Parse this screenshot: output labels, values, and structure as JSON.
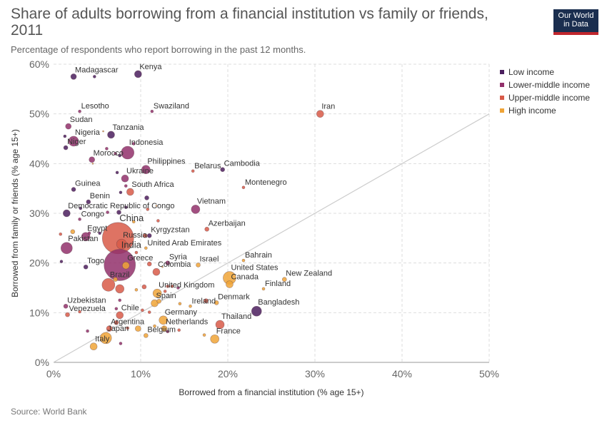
{
  "title": "Share of adults borrowing from a financial institution vs family or friends, 2011",
  "subtitle": "Percentage of respondents who report borrowing in the past 12 months.",
  "logo": {
    "line1": "Our World",
    "line2": "in Data"
  },
  "source": "Source: World Bank",
  "colors": {
    "Low income": "#4b1f5e",
    "Lower-middle income": "#92306b",
    "Upper-middle income": "#d85a48",
    "High income": "#f0a437"
  },
  "chart_data": {
    "type": "scatter",
    "xlabel": "Borrowed from a financial institution (% age 15+)",
    "ylabel": "Borrowed from family or friends (% age 15+)",
    "xlim": [
      0,
      50
    ],
    "ylim": [
      0,
      60
    ],
    "xticks": [
      "0%",
      "10%",
      "20%",
      "30%",
      "40%",
      "50%"
    ],
    "yticks": [
      "0%",
      "10%",
      "20%",
      "30%",
      "40%",
      "50%",
      "60%"
    ],
    "grid": true,
    "legend": [
      {
        "name": "Low income"
      },
      {
        "name": "Lower-middle income"
      },
      {
        "name": "Upper-middle income"
      },
      {
        "name": "High income"
      }
    ],
    "points": [
      {
        "label": "Madagascar",
        "x": 2.3,
        "y": 57.5,
        "group": "Low income",
        "size": 4
      },
      {
        "label": "Kenya",
        "x": 9.7,
        "y": 58.0,
        "group": "Low income",
        "size": 5
      },
      {
        "label": "Lesotho",
        "x": 3.0,
        "y": 50.5,
        "group": "Lower-middle income",
        "size": 2
      },
      {
        "label": "Swaziland",
        "x": 11.3,
        "y": 50.5,
        "group": "Lower-middle income",
        "size": 2
      },
      {
        "label": "Iran",
        "x": 30.6,
        "y": 50.0,
        "group": "Upper-middle income",
        "size": 5
      },
      {
        "label": "Sudan",
        "x": 1.7,
        "y": 47.5,
        "group": "Lower-middle income",
        "size": 4
      },
      {
        "label": "Tanzania",
        "x": 6.6,
        "y": 45.8,
        "group": "Low income",
        "size": 5
      },
      {
        "label": "Nigeria",
        "x": 2.3,
        "y": 44.5,
        "group": "Lower-middle income",
        "size": 7
      },
      {
        "label": "Niger",
        "x": 1.4,
        "y": 43.2,
        "group": "Low income",
        "size": 3
      },
      {
        "label": "Indonesia",
        "x": 8.5,
        "y": 42.2,
        "group": "Lower-middle income",
        "size": 9
      },
      {
        "label": "Morocco",
        "x": 4.4,
        "y": 40.8,
        "group": "Lower-middle income",
        "size": 4
      },
      {
        "label": "Philippines",
        "x": 10.6,
        "y": 38.8,
        "group": "Lower-middle income",
        "size": 6
      },
      {
        "label": "Belarus",
        "x": 16.0,
        "y": 38.5,
        "group": "Upper-middle income",
        "size": 2
      },
      {
        "label": "Cambodia",
        "x": 19.4,
        "y": 38.8,
        "group": "Low income",
        "size": 3
      },
      {
        "label": "Ukraine",
        "x": 8.2,
        "y": 37.0,
        "group": "Lower-middle income",
        "size": 5
      },
      {
        "label": "Montenegro",
        "x": 21.8,
        "y": 35.2,
        "group": "Upper-middle income",
        "size": 2
      },
      {
        "label": "Guinea",
        "x": 2.3,
        "y": 34.8,
        "group": "Low income",
        "size": 3
      },
      {
        "label": "South Africa",
        "x": 8.8,
        "y": 34.3,
        "group": "Upper-middle income",
        "size": 5
      },
      {
        "label": "Benin",
        "x": 4.0,
        "y": 32.3,
        "group": "Low income",
        "size": 3
      },
      {
        "label": "Vietnam",
        "x": 16.3,
        "y": 30.8,
        "group": "Lower-middle income",
        "size": 6
      },
      {
        "label": "Democratic Republic of Congo",
        "x": 1.5,
        "y": 30.0,
        "group": "Low income",
        "size": 5
      },
      {
        "label": "Congo",
        "x": 3.0,
        "y": 28.8,
        "group": "Lower-middle income",
        "size": 2
      },
      {
        "label": "Azerbaijan",
        "x": 17.6,
        "y": 26.8,
        "group": "Upper-middle income",
        "size": 3
      },
      {
        "label": "Kyrgyzstan",
        "x": 11.0,
        "y": 25.5,
        "group": "Low income",
        "size": 3
      },
      {
        "label": "Egypt",
        "x": 3.7,
        "y": 25.3,
        "group": "Lower-middle income",
        "size": 6
      },
      {
        "label": "China",
        "x": 7.4,
        "y": 25.0,
        "group": "Upper-middle income",
        "size": 22
      },
      {
        "label": "Pakistan",
        "x": 1.5,
        "y": 23.0,
        "group": "Lower-middle income",
        "size": 8
      },
      {
        "label": "Russia",
        "x": 7.8,
        "y": 23.8,
        "group": "Upper-middle income",
        "size": 7
      },
      {
        "label": "United Arab Emirates",
        "x": 10.6,
        "y": 23.0,
        "group": "High income",
        "size": 2
      },
      {
        "label": "India",
        "x": 7.6,
        "y": 19.6,
        "group": "Lower-middle income",
        "size": 22
      },
      {
        "label": "Bahrain",
        "x": 21.8,
        "y": 20.5,
        "group": "High income",
        "size": 2
      },
      {
        "label": "Syria",
        "x": 13.1,
        "y": 20.0,
        "group": "Lower-middle income",
        "size": 3
      },
      {
        "label": "Israel",
        "x": 16.6,
        "y": 19.6,
        "group": "High income",
        "size": 3
      },
      {
        "label": "Greece",
        "x": 8.3,
        "y": 19.5,
        "group": "High income",
        "size": 5
      },
      {
        "label": "Togo",
        "x": 3.7,
        "y": 19.2,
        "group": "Low income",
        "size": 3
      },
      {
        "label": "Colombia",
        "x": 11.8,
        "y": 18.2,
        "group": "Upper-middle income",
        "size": 5
      },
      {
        "label": "United States",
        "x": 20.2,
        "y": 17.0,
        "group": "High income",
        "size": 9
      },
      {
        "label": "New Zealand",
        "x": 26.5,
        "y": 16.7,
        "group": "High income",
        "size": 3
      },
      {
        "label": "Brazil",
        "x": 6.3,
        "y": 15.6,
        "group": "Upper-middle income",
        "size": 9
      },
      {
        "label": "Canada",
        "x": 20.2,
        "y": 15.7,
        "group": "High income",
        "size": 5
      },
      {
        "label": "Finland",
        "x": 24.1,
        "y": 14.8,
        "group": "High income",
        "size": 2
      },
      {
        "label": "United Kingdom",
        "x": 11.9,
        "y": 13.9,
        "group": "High income",
        "size": 6
      },
      {
        "label": "Spain",
        "x": 11.6,
        "y": 11.9,
        "group": "High income",
        "size": 5
      },
      {
        "label": "Ireland",
        "x": 15.7,
        "y": 11.3,
        "group": "High income",
        "size": 2
      },
      {
        "label": "Denmark",
        "x": 18.7,
        "y": 12.0,
        "group": "High income",
        "size": 3
      },
      {
        "label": "Uzbekistan",
        "x": 1.4,
        "y": 11.3,
        "group": "Lower-middle income",
        "size": 3
      },
      {
        "label": "Bangladesh",
        "x": 23.3,
        "y": 10.3,
        "group": "Low income",
        "size": 7
      },
      {
        "label": "Venezuela",
        "x": 1.6,
        "y": 9.6,
        "group": "Upper-middle income",
        "size": 3
      },
      {
        "label": "Chile",
        "x": 7.6,
        "y": 9.5,
        "group": "Upper-middle income",
        "size": 5
      },
      {
        "label": "Germany",
        "x": 12.6,
        "y": 8.5,
        "group": "High income",
        "size": 6
      },
      {
        "label": "Thailand",
        "x": 19.1,
        "y": 7.6,
        "group": "Upper-middle income",
        "size": 6
      },
      {
        "label": "Netherlands",
        "x": 12.7,
        "y": 6.8,
        "group": "High income",
        "size": 4
      },
      {
        "label": "Argentina",
        "x": 6.4,
        "y": 6.8,
        "group": "Upper-middle income",
        "size": 4
      },
      {
        "label": "Belgium",
        "x": 10.6,
        "y": 5.4,
        "group": "High income",
        "size": 3
      },
      {
        "label": "France",
        "x": 18.5,
        "y": 4.7,
        "group": "High income",
        "size": 6
      },
      {
        "label": "Japan",
        "x": 6.0,
        "y": 4.9,
        "group": "High income",
        "size": 8
      },
      {
        "label": "Italy",
        "x": 4.6,
        "y": 3.2,
        "group": "High income",
        "size": 5
      },
      {
        "label": "",
        "x": 4.7,
        "y": 57.5,
        "group": "Low income",
        "size": 2
      },
      {
        "label": "",
        "x": 1.3,
        "y": 45.5,
        "group": "Low income",
        "size": 2
      },
      {
        "label": "",
        "x": 5.7,
        "y": 46.5,
        "group": "High income",
        "size": 1
      },
      {
        "label": "",
        "x": 9.2,
        "y": 44.0,
        "group": "Lower-middle income",
        "size": 2
      },
      {
        "label": "",
        "x": 6.1,
        "y": 43.0,
        "group": "Lower-middle income",
        "size": 2
      },
      {
        "label": "",
        "x": 7.1,
        "y": 42.0,
        "group": "Lower-middle income",
        "size": 2
      },
      {
        "label": "",
        "x": 7.6,
        "y": 41.6,
        "group": "Low income",
        "size": 2
      },
      {
        "label": "",
        "x": 4.5,
        "y": 40.0,
        "group": "High income",
        "size": 1
      },
      {
        "label": "",
        "x": 7.3,
        "y": 38.2,
        "group": "Low income",
        "size": 2
      },
      {
        "label": "",
        "x": 8.3,
        "y": 35.5,
        "group": "Lower-middle income",
        "size": 2
      },
      {
        "label": "",
        "x": 7.7,
        "y": 34.2,
        "group": "Low income",
        "size": 2
      },
      {
        "label": "",
        "x": 10.7,
        "y": 33.1,
        "group": "Low income",
        "size": 3
      },
      {
        "label": "",
        "x": 7.5,
        "y": 30.2,
        "group": "Low income",
        "size": 3
      },
      {
        "label": "",
        "x": 10.8,
        "y": 30.8,
        "group": "Upper-middle income",
        "size": 2
      },
      {
        "label": "",
        "x": 11.8,
        "y": 31.5,
        "group": "High income",
        "size": 1
      },
      {
        "label": "",
        "x": 6.2,
        "y": 30.2,
        "group": "Lower-middle income",
        "size": 2
      },
      {
        "label": "",
        "x": 8.3,
        "y": 31.2,
        "group": "Low income",
        "size": 2
      },
      {
        "label": "",
        "x": 3.1,
        "y": 31.0,
        "group": "Low income",
        "size": 2
      },
      {
        "label": "",
        "x": 12.0,
        "y": 28.5,
        "group": "Upper-middle income",
        "size": 2
      },
      {
        "label": "",
        "x": 0.8,
        "y": 25.8,
        "group": "Upper-middle income",
        "size": 2
      },
      {
        "label": "",
        "x": 2.2,
        "y": 26.3,
        "group": "High income",
        "size": 3
      },
      {
        "label": "",
        "x": 4.1,
        "y": 26.0,
        "group": "Lower-middle income",
        "size": 2
      },
      {
        "label": "",
        "x": 9.2,
        "y": 28.3,
        "group": "High income",
        "size": 2
      },
      {
        "label": "",
        "x": 5.3,
        "y": 26.0,
        "group": "Low income",
        "size": 2
      },
      {
        "label": "",
        "x": 10.5,
        "y": 25.5,
        "group": "Upper-middle income",
        "size": 3
      },
      {
        "label": "",
        "x": 0.9,
        "y": 20.3,
        "group": "Low income",
        "size": 2
      },
      {
        "label": "",
        "x": 9.5,
        "y": 22.1,
        "group": "Upper-middle income",
        "size": 2
      },
      {
        "label": "",
        "x": 11.0,
        "y": 19.8,
        "group": "Upper-middle income",
        "size": 3
      },
      {
        "label": "",
        "x": 12.5,
        "y": 19.2,
        "group": "High income",
        "size": 1
      },
      {
        "label": "",
        "x": 13.6,
        "y": 15.3,
        "group": "Upper-middle income",
        "size": 2
      },
      {
        "label": "",
        "x": 10.4,
        "y": 15.2,
        "group": "Upper-middle income",
        "size": 3
      },
      {
        "label": "",
        "x": 7.6,
        "y": 14.8,
        "group": "Upper-middle income",
        "size": 6
      },
      {
        "label": "",
        "x": 7.1,
        "y": 16.7,
        "group": "High income",
        "size": 3
      },
      {
        "label": "",
        "x": 14.3,
        "y": 15.0,
        "group": "Lower-middle income",
        "size": 2
      },
      {
        "label": "",
        "x": 9.5,
        "y": 14.6,
        "group": "High income",
        "size": 2
      },
      {
        "label": "",
        "x": 12.8,
        "y": 14.3,
        "group": "Upper-middle income",
        "size": 2
      },
      {
        "label": "",
        "x": 13.1,
        "y": 15.3,
        "group": "Upper-middle income",
        "size": 2
      },
      {
        "label": "",
        "x": 12.1,
        "y": 12.3,
        "group": "High income",
        "size": 3
      },
      {
        "label": "",
        "x": 14.5,
        "y": 11.8,
        "group": "High income",
        "size": 2
      },
      {
        "label": "",
        "x": 17.5,
        "y": 12.4,
        "group": "Upper-middle income",
        "size": 3
      },
      {
        "label": "",
        "x": 3.0,
        "y": 10.2,
        "group": "Upper-middle income",
        "size": 2
      },
      {
        "label": "",
        "x": 7.2,
        "y": 10.8,
        "group": "Lower-middle income",
        "size": 2
      },
      {
        "label": "",
        "x": 7.6,
        "y": 12.5,
        "group": "Lower-middle income",
        "size": 2
      },
      {
        "label": "",
        "x": 10.2,
        "y": 10.5,
        "group": "Upper-middle income",
        "size": 2
      },
      {
        "label": "",
        "x": 11.0,
        "y": 10.1,
        "group": "Upper-middle income",
        "size": 2
      },
      {
        "label": "",
        "x": 8.5,
        "y": 6.9,
        "group": "Upper-middle income",
        "size": 2
      },
      {
        "label": "",
        "x": 9.7,
        "y": 6.8,
        "group": "High income",
        "size": 4
      },
      {
        "label": "",
        "x": 13.1,
        "y": 6.2,
        "group": "Lower-middle income",
        "size": 2
      },
      {
        "label": "",
        "x": 14.4,
        "y": 6.5,
        "group": "Upper-middle income",
        "size": 2
      },
      {
        "label": "",
        "x": 11.6,
        "y": 7.3,
        "group": "High income",
        "size": 2
      },
      {
        "label": "",
        "x": 7.2,
        "y": 8.0,
        "group": "Upper-middle income",
        "size": 3
      },
      {
        "label": "",
        "x": 3.9,
        "y": 6.3,
        "group": "Lower-middle income",
        "size": 2
      },
      {
        "label": "",
        "x": 17.3,
        "y": 5.5,
        "group": "High income",
        "size": 2
      },
      {
        "label": "",
        "x": 7.7,
        "y": 3.8,
        "group": "Lower-middle income",
        "size": 2
      }
    ]
  }
}
